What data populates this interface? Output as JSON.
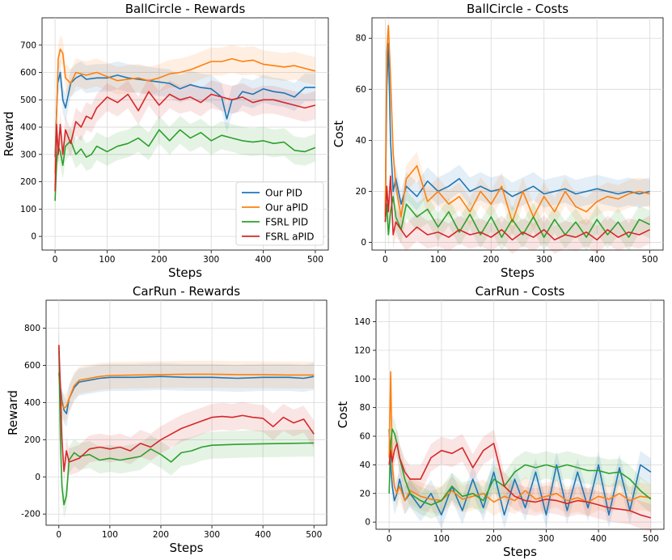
{
  "colors": {
    "our_pid": "#1f77b4",
    "our_apid": "#ff7f0e",
    "fsrl_pid": "#2ca02c",
    "fsrl_apid": "#d62728"
  },
  "chart_data": [
    {
      "type": "line",
      "title": "BallCircle - Rewards",
      "xlabel": "Steps",
      "ylabel": "Reward",
      "xlim": [
        -25,
        525
      ],
      "ylim": [
        -50,
        800
      ],
      "xticks": [
        0,
        100,
        200,
        300,
        400,
        500
      ],
      "yticks": [
        0,
        100,
        200,
        300,
        400,
        500,
        600,
        700
      ],
      "grid": true,
      "legend": "bottom-right",
      "series": [
        {
          "name": "Our PID",
          "color": "#1f77b4",
          "x": [
            0,
            5,
            10,
            15,
            20,
            30,
            40,
            50,
            60,
            80,
            100,
            120,
            140,
            160,
            180,
            200,
            220,
            240,
            260,
            280,
            300,
            320,
            330,
            340,
            350,
            360,
            380,
            400,
            420,
            440,
            460,
            480,
            500
          ],
          "y": [
            290,
            560,
            600,
            500,
            470,
            560,
            580,
            590,
            575,
            580,
            580,
            590,
            580,
            575,
            570,
            565,
            560,
            540,
            555,
            545,
            540,
            510,
            430,
            500,
            505,
            530,
            520,
            540,
            530,
            525,
            510,
            545,
            545
          ]
        },
        {
          "name": "Our aPID",
          "color": "#ff7f0e",
          "x": [
            0,
            3,
            6,
            10,
            15,
            20,
            30,
            40,
            60,
            80,
            100,
            120,
            140,
            160,
            180,
            200,
            220,
            240,
            260,
            280,
            300,
            320,
            340,
            360,
            380,
            400,
            420,
            440,
            460,
            480,
            500
          ],
          "y": [
            230,
            460,
            650,
            685,
            670,
            580,
            560,
            600,
            590,
            600,
            585,
            570,
            575,
            580,
            570,
            580,
            595,
            600,
            610,
            625,
            640,
            640,
            650,
            640,
            645,
            630,
            625,
            620,
            625,
            615,
            605
          ]
        },
        {
          "name": "FSRL PID",
          "color": "#2ca02c",
          "x": [
            0,
            3,
            6,
            10,
            15,
            20,
            30,
            40,
            50,
            60,
            70,
            80,
            100,
            120,
            140,
            160,
            180,
            200,
            220,
            240,
            260,
            280,
            300,
            320,
            340,
            360,
            380,
            400,
            420,
            440,
            460,
            480,
            500
          ],
          "y": [
            130,
            270,
            330,
            310,
            260,
            330,
            350,
            300,
            320,
            290,
            300,
            330,
            310,
            330,
            340,
            360,
            330,
            390,
            350,
            390,
            360,
            380,
            350,
            370,
            360,
            350,
            345,
            350,
            340,
            345,
            315,
            310,
            325
          ]
        },
        {
          "name": "FSRL aPID",
          "color": "#d62728",
          "x": [
            0,
            3,
            6,
            10,
            15,
            20,
            30,
            40,
            50,
            60,
            70,
            80,
            100,
            120,
            140,
            160,
            180,
            200,
            220,
            240,
            260,
            280,
            300,
            320,
            340,
            360,
            380,
            400,
            420,
            440,
            460,
            480,
            500
          ],
          "y": [
            165,
            410,
            300,
            410,
            300,
            390,
            340,
            420,
            400,
            440,
            430,
            470,
            510,
            490,
            520,
            460,
            530,
            480,
            520,
            500,
            510,
            490,
            520,
            510,
            500,
            510,
            490,
            500,
            500,
            490,
            480,
            470,
            480
          ]
        }
      ]
    },
    {
      "type": "line",
      "title": "BallCircle - Costs",
      "xlabel": "Steps",
      "ylabel": "Cost",
      "xlim": [
        -25,
        525
      ],
      "ylim": [
        -3,
        88
      ],
      "xticks": [
        0,
        100,
        200,
        300,
        400,
        500
      ],
      "yticks": [
        0,
        20,
        40,
        60,
        80
      ],
      "grid": true,
      "series": [
        {
          "name": "Our PID",
          "color": "#1f77b4",
          "x": [
            0,
            3,
            6,
            10,
            15,
            20,
            30,
            40,
            60,
            80,
            100,
            120,
            140,
            160,
            180,
            200,
            220,
            240,
            260,
            280,
            300,
            320,
            340,
            360,
            380,
            400,
            420,
            440,
            460,
            480,
            500
          ],
          "y": [
            10,
            60,
            78,
            40,
            20,
            25,
            15,
            22,
            18,
            24,
            20,
            22,
            25,
            20,
            22,
            20,
            21,
            18,
            20,
            22,
            19,
            20,
            21,
            19,
            20,
            21,
            20,
            19,
            20,
            19,
            20
          ]
        },
        {
          "name": "Our aPID",
          "color": "#ff7f0e",
          "x": [
            0,
            3,
            6,
            10,
            15,
            20,
            30,
            40,
            60,
            80,
            100,
            120,
            140,
            160,
            180,
            200,
            220,
            240,
            260,
            280,
            300,
            320,
            340,
            360,
            380,
            400,
            420,
            440,
            460,
            480,
            500
          ],
          "y": [
            10,
            75,
            85,
            65,
            35,
            22,
            10,
            25,
            30,
            16,
            20,
            15,
            18,
            12,
            20,
            15,
            22,
            8,
            20,
            10,
            18,
            12,
            20,
            14,
            12,
            16,
            18,
            17,
            19,
            20,
            19
          ]
        },
        {
          "name": "FSRL PID",
          "color": "#2ca02c",
          "x": [
            0,
            3,
            6,
            10,
            15,
            20,
            30,
            40,
            60,
            80,
            100,
            120,
            140,
            160,
            180,
            200,
            220,
            240,
            260,
            280,
            300,
            320,
            340,
            360,
            380,
            400,
            420,
            440,
            460,
            480,
            500
          ],
          "y": [
            8,
            15,
            3,
            12,
            18,
            10,
            5,
            15,
            10,
            13,
            6,
            12,
            4,
            11,
            3,
            10,
            2,
            9,
            3,
            10,
            2,
            9,
            3,
            8,
            2,
            9,
            3,
            8,
            2,
            9,
            7
          ]
        },
        {
          "name": "FSRL aPID",
          "color": "#d62728",
          "x": [
            0,
            3,
            6,
            10,
            15,
            20,
            30,
            40,
            60,
            80,
            100,
            120,
            140,
            160,
            180,
            200,
            220,
            240,
            260,
            280,
            300,
            320,
            340,
            360,
            380,
            400,
            420,
            440,
            460,
            480,
            500
          ],
          "y": [
            8,
            22,
            12,
            26,
            3,
            8,
            5,
            2,
            6,
            3,
            4,
            2,
            5,
            3,
            4,
            2,
            5,
            1,
            4,
            2,
            5,
            1,
            3,
            2,
            4,
            1,
            5,
            2,
            4,
            3,
            5
          ]
        }
      ]
    },
    {
      "type": "line",
      "title": "CarRun - Rewards",
      "xlabel": "Steps",
      "ylabel": "Reward",
      "xlim": [
        -25,
        525
      ],
      "ylim": [
        -260,
        950
      ],
      "xticks": [
        0,
        100,
        200,
        300,
        400,
        500
      ],
      "yticks": [
        -200,
        0,
        200,
        400,
        600,
        800
      ],
      "grid": true,
      "series": [
        {
          "name": "Our PID",
          "color": "#1f77b4",
          "x": [
            0,
            3,
            6,
            10,
            15,
            20,
            30,
            40,
            60,
            80,
            100,
            150,
            200,
            250,
            300,
            350,
            400,
            450,
            480,
            500
          ],
          "y": [
            560,
            480,
            410,
            360,
            340,
            420,
            480,
            510,
            520,
            530,
            535,
            535,
            540,
            535,
            535,
            530,
            535,
            535,
            530,
            540
          ]
        },
        {
          "name": "Our aPID",
          "color": "#ff7f0e",
          "x": [
            0,
            3,
            6,
            10,
            15,
            20,
            30,
            40,
            60,
            80,
            100,
            150,
            200,
            250,
            300,
            350,
            400,
            450,
            500
          ],
          "y": [
            550,
            450,
            390,
            370,
            380,
            420,
            490,
            520,
            530,
            540,
            545,
            548,
            550,
            552,
            552,
            550,
            550,
            548,
            548
          ]
        },
        {
          "name": "FSRL PID",
          "color": "#2ca02c",
          "x": [
            0,
            3,
            6,
            10,
            15,
            20,
            30,
            40,
            60,
            80,
            100,
            120,
            140,
            160,
            180,
            200,
            220,
            240,
            260,
            280,
            300,
            350,
            400,
            450,
            500
          ],
          "y": [
            700,
            200,
            -50,
            -150,
            -100,
            90,
            130,
            110,
            120,
            90,
            100,
            90,
            100,
            110,
            150,
            120,
            80,
            130,
            140,
            160,
            170,
            175,
            178,
            180,
            182
          ]
        },
        {
          "name": "FSRL aPID",
          "color": "#d62728",
          "x": [
            0,
            3,
            6,
            10,
            15,
            20,
            30,
            40,
            60,
            80,
            100,
            120,
            140,
            160,
            180,
            200,
            220,
            240,
            260,
            280,
            300,
            320,
            340,
            360,
            380,
            400,
            420,
            440,
            460,
            480,
            500
          ],
          "y": [
            710,
            480,
            200,
            30,
            140,
            80,
            90,
            100,
            150,
            160,
            150,
            160,
            140,
            180,
            160,
            200,
            230,
            260,
            280,
            300,
            320,
            325,
            320,
            330,
            320,
            315,
            270,
            320,
            290,
            310,
            230
          ]
        }
      ]
    },
    {
      "type": "line",
      "title": "CarRun - Costs",
      "xlabel": "Steps",
      "ylabel": "Cost",
      "xlim": [
        -25,
        525
      ],
      "ylim": [
        -5,
        155
      ],
      "xticks": [
        0,
        100,
        200,
        300,
        400,
        500
      ],
      "yticks": [
        0,
        20,
        40,
        60,
        80,
        100,
        120,
        140
      ],
      "grid": true,
      "series": [
        {
          "name": "Our PID",
          "color": "#1f77b4",
          "x": [
            0,
            3,
            6,
            10,
            15,
            20,
            30,
            40,
            60,
            80,
            100,
            120,
            140,
            160,
            180,
            200,
            220,
            240,
            260,
            280,
            300,
            320,
            340,
            360,
            380,
            400,
            420,
            440,
            460,
            480,
            500
          ],
          "y": [
            65,
            40,
            25,
            15,
            20,
            30,
            15,
            20,
            10,
            20,
            5,
            25,
            8,
            30,
            10,
            35,
            5,
            30,
            10,
            35,
            5,
            40,
            8,
            35,
            10,
            40,
            5,
            38,
            8,
            40,
            35
          ]
        },
        {
          "name": "Our aPID",
          "color": "#ff7f0e",
          "x": [
            0,
            3,
            6,
            10,
            15,
            20,
            30,
            40,
            60,
            80,
            100,
            120,
            140,
            160,
            180,
            200,
            220,
            240,
            260,
            280,
            300,
            320,
            340,
            360,
            380,
            400,
            420,
            440,
            460,
            480,
            500
          ],
          "y": [
            45,
            105,
            40,
            25,
            20,
            25,
            15,
            22,
            18,
            16,
            15,
            22,
            16,
            18,
            20,
            14,
            18,
            15,
            22,
            16,
            18,
            20,
            15,
            17,
            14,
            18,
            16,
            20,
            15,
            18,
            17
          ]
        },
        {
          "name": "FSRL PID",
          "color": "#2ca02c",
          "x": [
            0,
            3,
            6,
            10,
            15,
            20,
            30,
            40,
            60,
            80,
            100,
            120,
            140,
            160,
            180,
            200,
            220,
            240,
            260,
            280,
            300,
            320,
            340,
            360,
            380,
            400,
            420,
            440,
            460,
            480,
            500
          ],
          "y": [
            20,
            55,
            65,
            62,
            55,
            45,
            30,
            20,
            15,
            12,
            15,
            25,
            18,
            20,
            15,
            30,
            25,
            35,
            40,
            38,
            40,
            38,
            40,
            38,
            36,
            36,
            34,
            35,
            30,
            22,
            16
          ]
        },
        {
          "name": "FSRL aPID",
          "color": "#d62728",
          "x": [
            0,
            3,
            6,
            10,
            15,
            20,
            30,
            40,
            60,
            80,
            100,
            120,
            140,
            160,
            180,
            200,
            220,
            240,
            260,
            280,
            300,
            320,
            340,
            360,
            380,
            400,
            420,
            440,
            460,
            480,
            500
          ],
          "y": [
            40,
            50,
            42,
            50,
            55,
            45,
            35,
            30,
            30,
            45,
            50,
            48,
            52,
            38,
            50,
            55,
            25,
            18,
            15,
            14,
            16,
            15,
            13,
            15,
            14,
            12,
            10,
            9,
            8,
            5,
            3
          ]
        }
      ]
    }
  ]
}
